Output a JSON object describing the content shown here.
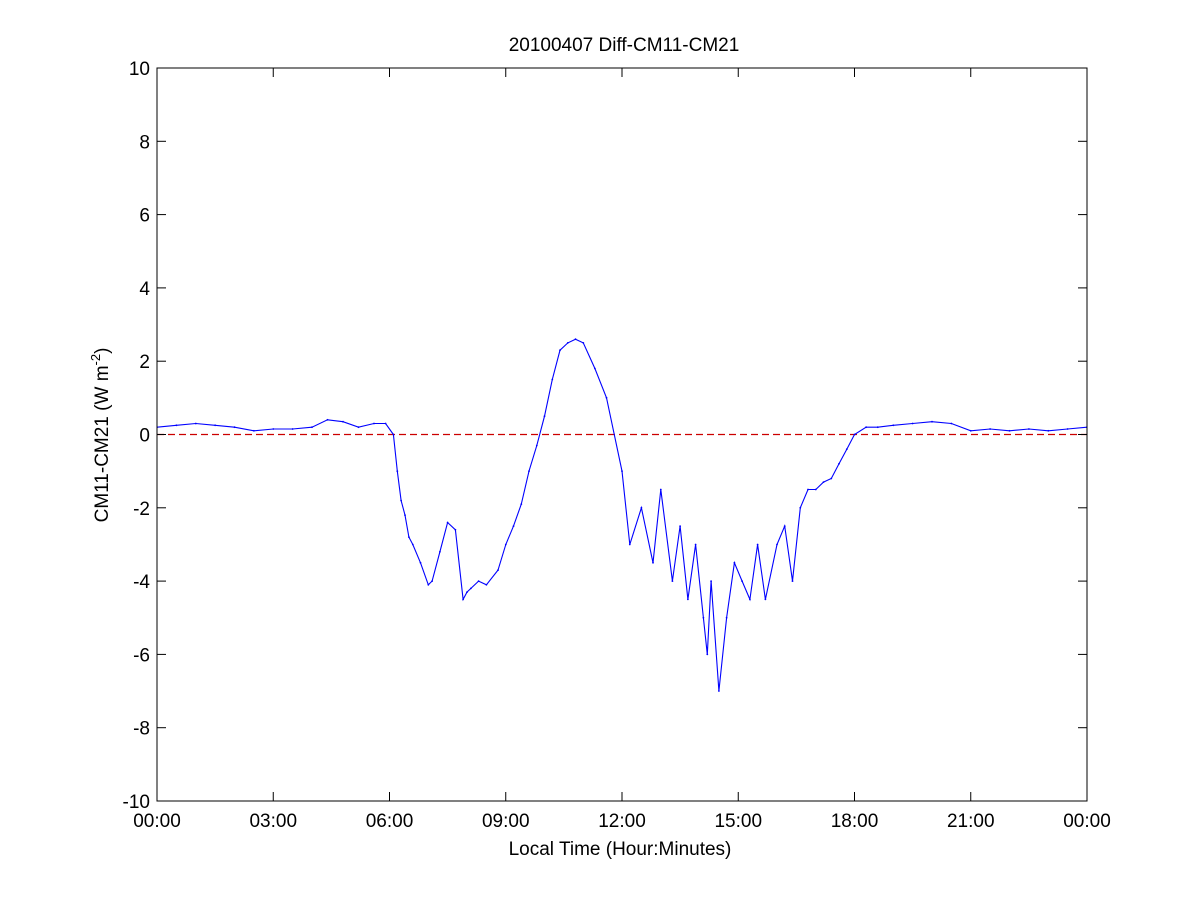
{
  "chart_data": {
    "type": "line",
    "title": "20100407 Diff-CM11-CM21",
    "xlabel": "Local Time (Hour:Minutes)",
    "ylabel": "CM11-CM21 (W m",
    "ylabel_superscript": "-2",
    "ylabel_suffix": ")",
    "xlim": [
      0,
      24
    ],
    "ylim": [
      -10,
      10
    ],
    "x_ticks": [
      0,
      3,
      6,
      9,
      12,
      15,
      18,
      21,
      24
    ],
    "x_tick_labels": [
      "00:00",
      "03:00",
      "06:00",
      "09:00",
      "12:00",
      "15:00",
      "18:00",
      "21:00",
      "00:00"
    ],
    "y_ticks": [
      -10,
      -8,
      -6,
      -4,
      -2,
      0,
      2,
      4,
      6,
      8,
      10
    ],
    "y_tick_labels": [
      "-10",
      "-8",
      "-6",
      "-4",
      "-2",
      "0",
      "2",
      "4",
      "6",
      "8",
      "10"
    ],
    "grid": false,
    "reference_line": {
      "y": 0,
      "color": "#cc0000",
      "style": "dashed"
    },
    "series": [
      {
        "color": "#0000ff",
        "x": [
          0.0,
          0.5,
          1.0,
          1.5,
          2.0,
          2.5,
          3.0,
          3.5,
          4.0,
          4.4,
          4.8,
          5.2,
          5.6,
          5.9,
          6.1,
          6.2,
          6.3,
          6.4,
          6.5,
          6.6,
          6.8,
          7.0,
          7.1,
          7.3,
          7.5,
          7.7,
          7.9,
          8.0,
          8.1,
          8.3,
          8.5,
          8.8,
          9.0,
          9.2,
          9.4,
          9.6,
          9.8,
          10.0,
          10.2,
          10.4,
          10.6,
          10.8,
          11.0,
          11.3,
          11.6,
          12.0,
          12.2,
          12.5,
          12.8,
          13.0,
          13.3,
          13.5,
          13.7,
          13.9,
          14.1,
          14.2,
          14.3,
          14.5,
          14.7,
          14.9,
          15.1,
          15.3,
          15.5,
          15.7,
          16.0,
          16.2,
          16.4,
          16.6,
          16.8,
          17.0,
          17.2,
          17.4,
          17.6,
          17.8,
          18.0,
          18.3,
          18.6,
          19.0,
          19.5,
          20.0,
          20.5,
          21.0,
          21.5,
          22.0,
          22.5,
          23.0,
          23.5,
          24.0
        ],
        "y": [
          0.2,
          0.25,
          0.3,
          0.25,
          0.2,
          0.1,
          0.15,
          0.15,
          0.2,
          0.4,
          0.35,
          0.2,
          0.3,
          0.3,
          0.0,
          -1.0,
          -1.8,
          -2.2,
          -2.8,
          -3.0,
          -3.5,
          -4.1,
          -4.0,
          -3.2,
          -2.4,
          -2.6,
          -4.5,
          -4.3,
          -4.2,
          -4.0,
          -4.1,
          -3.7,
          -3.0,
          -2.5,
          -1.9,
          -1.0,
          -0.3,
          0.5,
          1.5,
          2.3,
          2.5,
          2.6,
          2.5,
          1.8,
          1.0,
          -1.0,
          -3.0,
          -2.0,
          -3.5,
          -1.5,
          -4.0,
          -2.5,
          -4.5,
          -3.0,
          -5.0,
          -6.0,
          -4.0,
          -7.0,
          -5.0,
          -3.5,
          -4.0,
          -4.5,
          -3.0,
          -4.5,
          -3.0,
          -2.5,
          -4.0,
          -2.0,
          -1.5,
          -1.5,
          -1.3,
          -1.2,
          -0.8,
          -0.4,
          0.0,
          0.2,
          0.2,
          0.25,
          0.3,
          0.35,
          0.3,
          0.1,
          0.15,
          0.1,
          0.15,
          0.1,
          0.15,
          0.2
        ]
      }
    ]
  }
}
